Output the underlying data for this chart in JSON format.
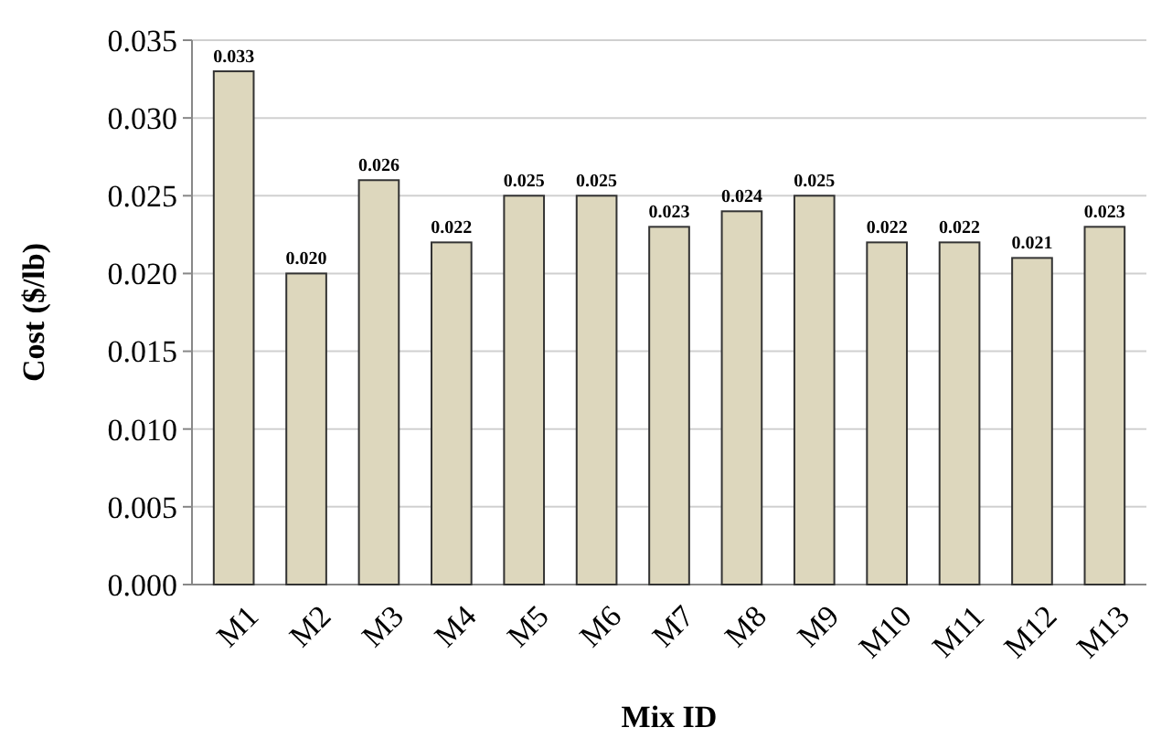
{
  "chart_data": {
    "type": "bar",
    "xlabel": "Mix ID",
    "ylabel": "Cost ($/lb)",
    "categories": [
      "M1",
      "M2",
      "M3",
      "M4",
      "M5",
      "M6",
      "M7",
      "M8",
      "M9",
      "M10",
      "M11",
      "M12",
      "M13"
    ],
    "values": [
      0.033,
      0.02,
      0.026,
      0.022,
      0.025,
      0.025,
      0.023,
      0.024,
      0.025,
      0.022,
      0.022,
      0.021,
      0.023
    ],
    "color": "#ddd7bd",
    "ylim": [
      0,
      0.035
    ],
    "yticks": [
      {
        "value": 0,
        "label": "0.000"
      },
      0.005,
      {
        "value": 0.01,
        "label": "0.010"
      },
      0.015,
      {
        "value": 0.02,
        "label": "0.020"
      },
      0.025,
      {
        "value": 0.03,
        "label": "0.030"
      },
      0.035
    ],
    "value_labels": [
      "0.033",
      "0.020",
      "0.026",
      "0.022",
      "0.025",
      "0.025",
      "0.023",
      "0.024",
      "0.025",
      "0.022",
      "0.022",
      "0.021",
      "0.023"
    ],
    "grid": "y"
  }
}
